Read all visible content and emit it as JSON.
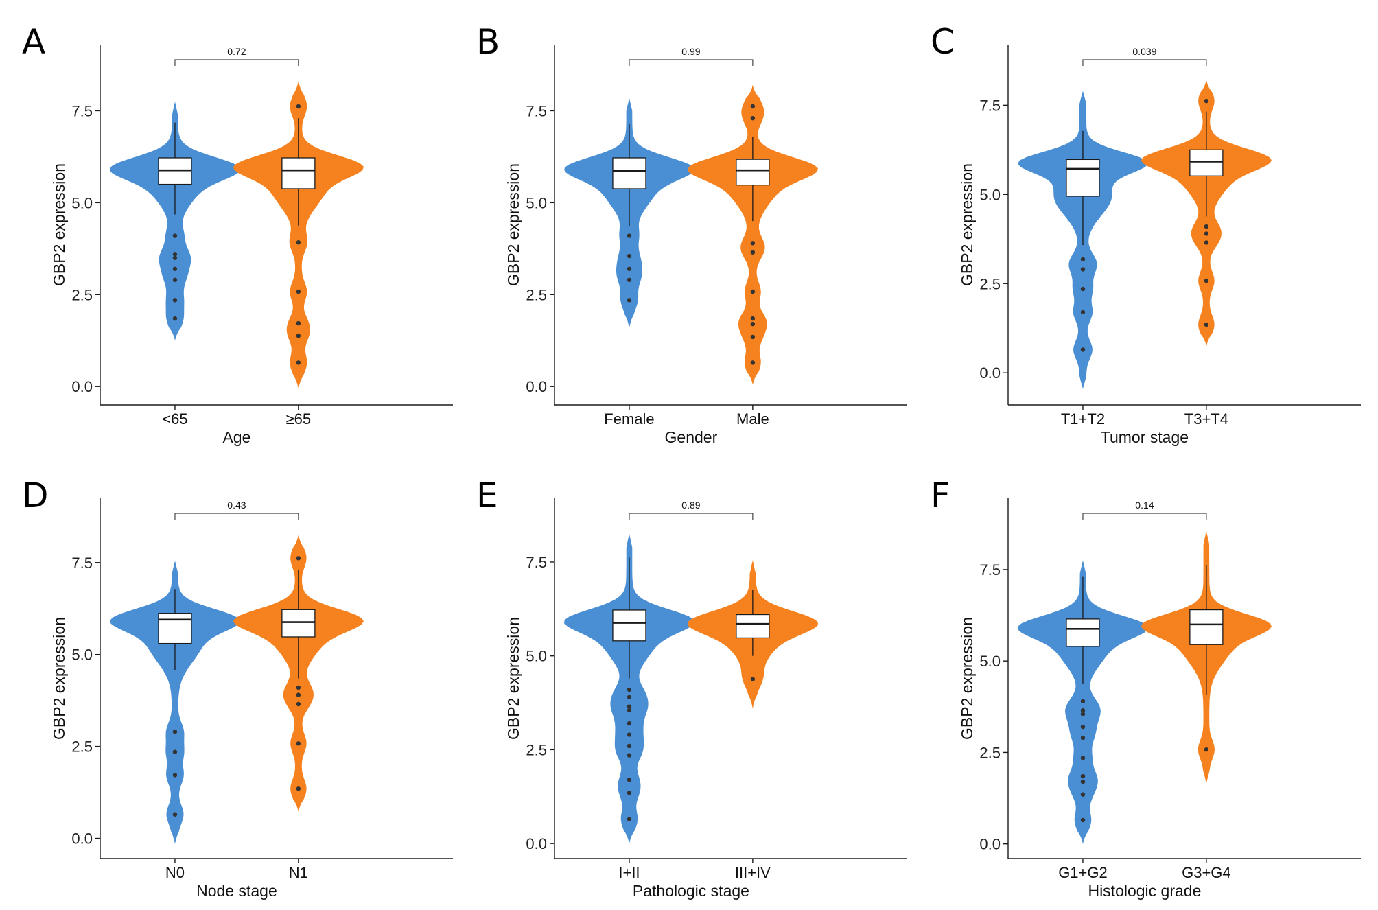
{
  "colors": {
    "group1": "#4a8fd4",
    "group2": "#f5821f",
    "box_fill": "#ffffff",
    "ink": "#1a1a1a"
  },
  "chart_data": [
    {
      "panel": "A",
      "type": "violin",
      "xlabel": "Age",
      "ylabel": "GBP2 expression",
      "ylim": [
        -0.5,
        9.3
      ],
      "yticks": [
        0.0,
        2.5,
        5.0,
        7.5
      ],
      "ytick_labels": [
        "0.0",
        "2.5",
        "5.0",
        "7.5"
      ],
      "categories": [
        "<65",
        "≥65"
      ],
      "p_value": "0.72",
      "groups": [
        {
          "name": "<65",
          "box": {
            "q1": 5.5,
            "median": 5.88,
            "q3": 6.22
          },
          "whisker": [
            4.68,
            7.18
          ],
          "range": [
            1.25,
            7.75
          ],
          "mode": 5.95,
          "outliers": [
            4.1,
            3.6,
            3.5,
            3.2,
            2.9,
            2.35,
            1.85
          ]
        },
        {
          "name": "≥65",
          "box": {
            "q1": 5.38,
            "median": 5.88,
            "q3": 6.22
          },
          "whisker": [
            4.38,
            7.3
          ],
          "range": [
            -0.05,
            8.3
          ],
          "mode": 6.0,
          "outliers": [
            7.62,
            3.92,
            2.58,
            1.72,
            1.38,
            0.65
          ]
        }
      ]
    },
    {
      "panel": "B",
      "type": "violin",
      "xlabel": "Gender",
      "ylabel": "GBP2 expression",
      "ylim": [
        -0.5,
        9.3
      ],
      "yticks": [
        0.0,
        2.5,
        5.0,
        7.5
      ],
      "ytick_labels": [
        "0.0",
        "2.5",
        "5.0",
        "7.5"
      ],
      "categories": [
        "Female",
        "Male"
      ],
      "p_value": "0.99",
      "groups": [
        {
          "name": "Female",
          "box": {
            "q1": 5.38,
            "median": 5.86,
            "q3": 6.22
          },
          "whisker": [
            4.35,
            7.15
          ],
          "range": [
            1.6,
            7.85
          ],
          "mode": 5.95,
          "outliers": [
            4.1,
            3.55,
            3.2,
            2.9,
            2.35
          ]
        },
        {
          "name": "Male",
          "box": {
            "q1": 5.48,
            "median": 5.88,
            "q3": 6.18
          },
          "whisker": [
            4.5,
            6.8
          ],
          "range": [
            0.05,
            8.2
          ],
          "mode": 5.95,
          "outliers": [
            7.62,
            7.3,
            3.9,
            3.65,
            2.58,
            1.85,
            1.7,
            1.35,
            0.65
          ]
        }
      ]
    },
    {
      "panel": "C",
      "type": "violin",
      "xlabel": "Tumor stage",
      "ylabel": "GBP2 expression",
      "ylim": [
        -0.9,
        9.2
      ],
      "yticks": [
        0.0,
        2.5,
        5.0,
        7.5
      ],
      "ytick_labels": [
        "0.0",
        "2.5",
        "5.0",
        "7.5"
      ],
      "categories": [
        "T1+T2",
        "T3+T4"
      ],
      "p_value": "0.039",
      "groups": [
        {
          "name": "T1+T2",
          "box": {
            "q1": 4.95,
            "median": 5.72,
            "q3": 5.98
          },
          "whisker": [
            3.58,
            6.78
          ],
          "range": [
            -0.45,
            7.9
          ],
          "mode": 5.9,
          "outliers": [
            3.18,
            2.9,
            2.35,
            1.7,
            0.65
          ]
        },
        {
          "name": "T3+T4",
          "box": {
            "q1": 5.52,
            "median": 5.92,
            "q3": 6.25
          },
          "whisker": [
            4.38,
            7.32
          ],
          "range": [
            0.75,
            8.2
          ],
          "mode": 6.0,
          "outliers": [
            7.62,
            4.1,
            3.9,
            3.65,
            2.58,
            1.35
          ]
        }
      ]
    },
    {
      "panel": "D",
      "type": "violin",
      "xlabel": "Node stage",
      "ylabel": "GBP2 expression",
      "ylim": [
        -0.55,
        9.25
      ],
      "yticks": [
        0.0,
        2.5,
        5.0,
        7.5
      ],
      "ytick_labels": [
        "0.0",
        "2.5",
        "5.0",
        "7.5"
      ],
      "categories": [
        "N0",
        "N1"
      ],
      "p_value": "0.43",
      "groups": [
        {
          "name": "N0",
          "box": {
            "q1": 5.3,
            "median": 5.95,
            "q3": 6.12
          },
          "whisker": [
            4.58,
            6.78
          ],
          "range": [
            -0.15,
            7.55
          ],
          "mode": 5.95,
          "outliers": [
            2.9,
            2.35,
            1.72,
            0.65
          ]
        },
        {
          "name": "N1",
          "box": {
            "q1": 5.48,
            "median": 5.88,
            "q3": 6.22
          },
          "whisker": [
            4.35,
            7.3
          ],
          "range": [
            0.72,
            8.25
          ],
          "mode": 5.95,
          "outliers": [
            7.62,
            4.1,
            3.9,
            3.65,
            2.58,
            1.35
          ]
        }
      ]
    },
    {
      "panel": "E",
      "type": "violin",
      "xlabel": "Pathologic stage",
      "ylabel": "GBP2 expression",
      "ylim": [
        -0.4,
        9.2
      ],
      "yticks": [
        0.0,
        2.5,
        5.0,
        7.5
      ],
      "ytick_labels": [
        "0.0",
        "2.5",
        "5.0",
        "7.5"
      ],
      "categories": [
        "I+II",
        "III+IV"
      ],
      "p_value": "0.89",
      "groups": [
        {
          "name": "I+II",
          "box": {
            "q1": 5.4,
            "median": 5.88,
            "q3": 6.22
          },
          "whisker": [
            4.4,
            7.62
          ],
          "range": [
            0.0,
            8.25
          ],
          "mode": 5.95,
          "outliers": [
            4.1,
            3.9,
            3.65,
            3.55,
            3.2,
            2.9,
            2.6,
            2.35,
            1.7,
            1.35,
            0.65
          ]
        },
        {
          "name": "III+IV",
          "box": {
            "q1": 5.48,
            "median": 5.85,
            "q3": 6.1
          },
          "whisker": [
            5.0,
            6.75
          ],
          "range": [
            3.6,
            7.55
          ],
          "mode": 5.9,
          "outliers": [
            4.38
          ]
        }
      ]
    },
    {
      "panel": "F",
      "type": "violin",
      "xlabel": "Histologic grade",
      "ylabel": "GBP2 expression",
      "ylim": [
        -0.4,
        9.45
      ],
      "yticks": [
        0.0,
        2.5,
        5.0,
        7.5
      ],
      "ytick_labels": [
        "0.0",
        "2.5",
        "5.0",
        "7.5"
      ],
      "categories": [
        "G1+G2",
        "G3+G4"
      ],
      "p_value": "0.14",
      "groups": [
        {
          "name": "G1+G2",
          "box": {
            "q1": 5.4,
            "median": 5.88,
            "q3": 6.15
          },
          "whisker": [
            4.38,
            7.3
          ],
          "range": [
            0.0,
            7.75
          ],
          "mode": 5.95,
          "outliers": [
            3.9,
            3.65,
            3.55,
            3.2,
            2.9,
            2.35,
            1.85,
            1.7,
            1.35,
            0.65
          ]
        },
        {
          "name": "G3+G4",
          "box": {
            "q1": 5.45,
            "median": 6.0,
            "q3": 6.4
          },
          "whisker": [
            4.08,
            7.62
          ],
          "range": [
            1.65,
            8.55
          ],
          "mode": 6.0,
          "outliers": [
            2.58
          ]
        }
      ]
    }
  ]
}
